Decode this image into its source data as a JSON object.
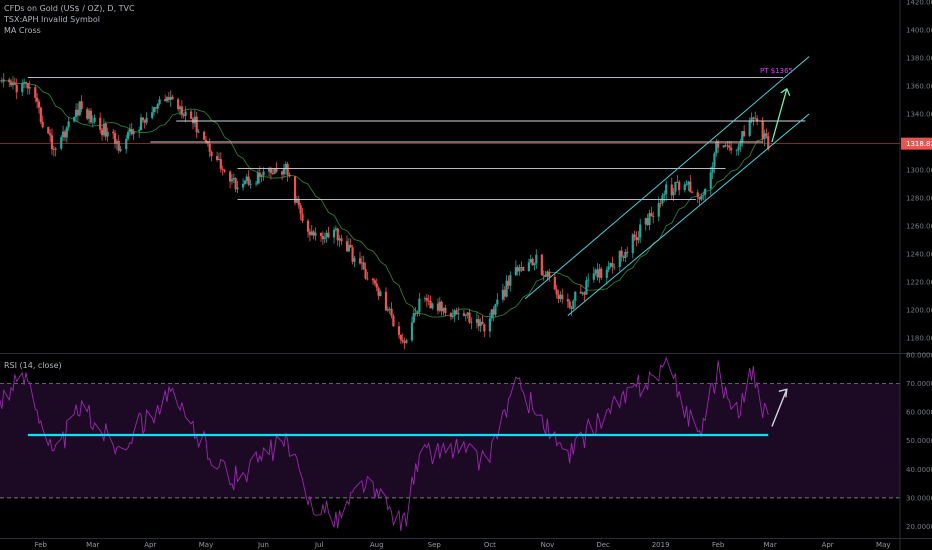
{
  "legend": {
    "symbol_line": "CFDs on Gold (US$ / OZ), D, TVC",
    "invalid_line": "TSX:APH Invalid Symbol",
    "ma_line": "MA Cross"
  },
  "rsi_legend": "RSI (14, close)",
  "annotation_pt": "PT $1365",
  "last_price_label": "1318.82",
  "colors": {
    "up": "#26a69a",
    "down": "#ef5350",
    "ma": "#2e7d32",
    "hline": "#d1d4dc",
    "channel": "#4dd0e1",
    "target_arrow": "#69f0ae",
    "rsi_line": "#9c27b0",
    "rsi_band": "#1c0a24",
    "rsi_support": "#00e5ff",
    "price_line": "#ef5350",
    "annotation": "#e040fb"
  },
  "chart_data": [
    {
      "type": "candlestick",
      "title": "CFDs on Gold (US$ / OZ), D, TVC",
      "x_tick_labels": [
        "Feb",
        "Mar",
        "Apr",
        "May",
        "Jun",
        "Jul",
        "Aug",
        "Sep",
        "Oct",
        "Nov",
        "Dec",
        "2019",
        "Feb",
        "Mar",
        "Apr",
        "May"
      ],
      "y_tick_labels": [
        "1420.00",
        "1400.00",
        "1380.00",
        "1360.00",
        "1340.00",
        "1320.00",
        "1300.00",
        "1280.00",
        "1260.00",
        "1240.00",
        "1220.00",
        "1200.00",
        "1180.00"
      ],
      "ylim": [
        1170,
        1420
      ],
      "last_price": 1318.82,
      "price_target": 1365,
      "horizontal_levels": [
        {
          "from": "2018-01-25",
          "to": "2019-03-08",
          "price": 1366
        },
        {
          "from": "2018-04-15",
          "to": "2019-03-20",
          "price": 1335
        },
        {
          "from": "2018-04-01",
          "to": "2019-02-25",
          "price": 1320
        },
        {
          "from": "2018-05-18",
          "to": "2019-02-05",
          "price": 1301
        },
        {
          "from": "2018-05-18",
          "to": "2019-01-20",
          "price": 1279
        }
      ],
      "channel_lines": [
        {
          "from": [
            "2018-10-20",
            1208
          ],
          "to": [
            "2019-03-22",
            1381
          ]
        },
        {
          "from": [
            "2018-11-12",
            1196
          ],
          "to": [
            "2019-03-22",
            1340
          ]
        }
      ],
      "target_arrow": {
        "from": [
          "2019-03-02",
          1320
        ],
        "to": [
          "2019-03-10",
          1358
        ]
      },
      "key_prices": [
        {
          "date": "2018-01-25",
          "price": 1360
        },
        {
          "date": "2018-02-08",
          "price": 1315
        },
        {
          "date": "2018-02-22",
          "price": 1345
        },
        {
          "date": "2018-03-15",
          "price": 1318
        },
        {
          "date": "2018-04-11",
          "price": 1352
        },
        {
          "date": "2018-04-22",
          "price": 1340
        },
        {
          "date": "2018-05-15",
          "price": 1290
        },
        {
          "date": "2018-06-13",
          "price": 1300
        },
        {
          "date": "2018-06-25",
          "price": 1253
        },
        {
          "date": "2018-07-10",
          "price": 1256
        },
        {
          "date": "2018-08-01",
          "price": 1215
        },
        {
          "date": "2018-08-16",
          "price": 1177
        },
        {
          "date": "2018-08-24",
          "price": 1205
        },
        {
          "date": "2018-09-15",
          "price": 1198
        },
        {
          "date": "2018-09-28",
          "price": 1188
        },
        {
          "date": "2018-10-15",
          "price": 1228
        },
        {
          "date": "2018-10-26",
          "price": 1235
        },
        {
          "date": "2018-11-12",
          "price": 1202
        },
        {
          "date": "2018-11-25",
          "price": 1222
        },
        {
          "date": "2018-12-15",
          "price": 1245
        },
        {
          "date": "2019-01-04",
          "price": 1285
        },
        {
          "date": "2019-01-15",
          "price": 1290
        },
        {
          "date": "2019-01-23",
          "price": 1280
        },
        {
          "date": "2019-02-01",
          "price": 1320
        },
        {
          "date": "2019-02-10",
          "price": 1310
        },
        {
          "date": "2019-02-19",
          "price": 1342
        },
        {
          "date": "2019-02-28",
          "price": 1318
        }
      ]
    },
    {
      "type": "line",
      "title": "RSI (14, close)",
      "y_tick_labels": [
        "80.0000",
        "70.0000",
        "60.0000",
        "50.0000",
        "40.0000",
        "30.0000",
        "20.0000"
      ],
      "ylim": [
        17,
        80
      ],
      "band": [
        30,
        70
      ],
      "support_line": {
        "from": "2018-01-25",
        "to": "2019-02-28",
        "value": 52
      },
      "up_arrow": {
        "from": [
          "2019-03-02",
          55
        ],
        "to": [
          "2019-03-10",
          68
        ]
      },
      "key_values": [
        {
          "date": "2018-01-10",
          "value": 65
        },
        {
          "date": "2018-01-25",
          "value": 73
        },
        {
          "date": "2018-02-08",
          "value": 44
        },
        {
          "date": "2018-02-22",
          "value": 62
        },
        {
          "date": "2018-03-15",
          "value": 48
        },
        {
          "date": "2018-04-11",
          "value": 66
        },
        {
          "date": "2018-05-15",
          "value": 36
        },
        {
          "date": "2018-06-13",
          "value": 50
        },
        {
          "date": "2018-06-25",
          "value": 30
        },
        {
          "date": "2018-07-10",
          "value": 22
        },
        {
          "date": "2018-07-25",
          "value": 36
        },
        {
          "date": "2018-08-05",
          "value": 28
        },
        {
          "date": "2018-08-16",
          "value": 21
        },
        {
          "date": "2018-08-24",
          "value": 45
        },
        {
          "date": "2018-09-15",
          "value": 48
        },
        {
          "date": "2018-09-28",
          "value": 42
        },
        {
          "date": "2018-10-15",
          "value": 70
        },
        {
          "date": "2018-10-26",
          "value": 60
        },
        {
          "date": "2018-11-12",
          "value": 43
        },
        {
          "date": "2018-11-25",
          "value": 55
        },
        {
          "date": "2018-12-15",
          "value": 66
        },
        {
          "date": "2019-01-04",
          "value": 77
        },
        {
          "date": "2019-01-15",
          "value": 60
        },
        {
          "date": "2019-01-23",
          "value": 54
        },
        {
          "date": "2019-02-01",
          "value": 75
        },
        {
          "date": "2019-02-10",
          "value": 58
        },
        {
          "date": "2019-02-19",
          "value": 74
        },
        {
          "date": "2019-02-28",
          "value": 55
        }
      ]
    }
  ]
}
